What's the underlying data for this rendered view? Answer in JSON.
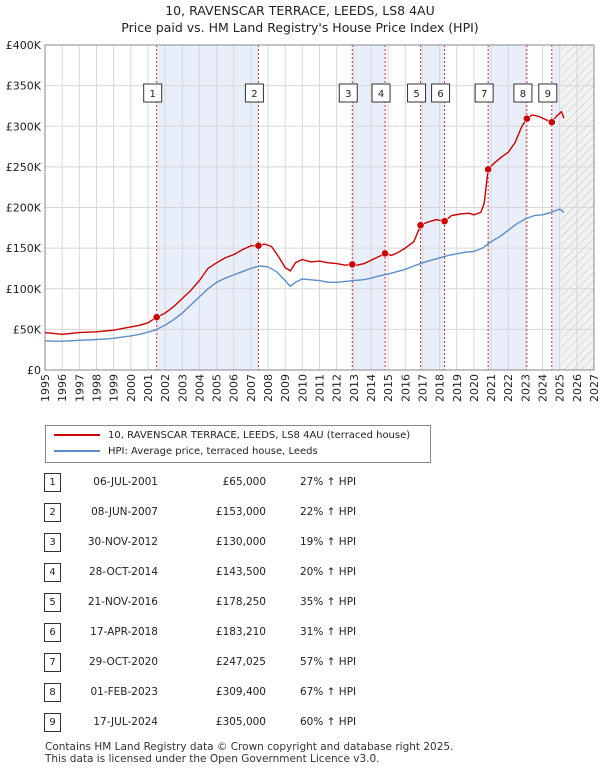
{
  "header": {
    "title_line1": "10, RAVENSCAR TERRACE, LEEDS, LS8 4AU",
    "title_line2": "Price paid vs. HM Land Registry's House Price Index (HPI)"
  },
  "colors": {
    "price_line": "#cc0000",
    "hpi_line": "#5b8ec8",
    "shade": "#e8eefa",
    "grid": "#d8d8d8",
    "marker_border": "#cc0000"
  },
  "chart_data": {
    "type": "line",
    "title": "Price paid vs. HM Land Registry's House Price Index (HPI)",
    "xlabel": "",
    "ylabel": "",
    "xlim": [
      1995,
      2027
    ],
    "ylim": [
      0,
      400000
    ],
    "x_ticks": [
      1995,
      1996,
      1997,
      1998,
      1999,
      2000,
      2001,
      2002,
      2003,
      2004,
      2005,
      2006,
      2007,
      2008,
      2009,
      2010,
      2011,
      2012,
      2013,
      2014,
      2015,
      2016,
      2017,
      2018,
      2019,
      2020,
      2021,
      2022,
      2023,
      2024,
      2025,
      2026,
      2027
    ],
    "y_ticks": [
      {
        "value": 0,
        "label": "£0"
      },
      {
        "value": 50000,
        "label": "£50K"
      },
      {
        "value": 100000,
        "label": "£100K"
      },
      {
        "value": 150000,
        "label": "£150K"
      },
      {
        "value": 200000,
        "label": "£200K"
      },
      {
        "value": 250000,
        "label": "£250K"
      },
      {
        "value": 300000,
        "label": "£300K"
      },
      {
        "value": 350000,
        "label": "£350K"
      },
      {
        "value": 400000,
        "label": "£400K"
      }
    ],
    "forecast_start": 2025.1,
    "shaded_ranges": [
      [
        2001.5,
        2007.45
      ],
      [
        2012.9,
        2014.8
      ],
      [
        2016.9,
        2018.3
      ],
      [
        2020.8,
        2023.1
      ],
      [
        2024.55,
        2025.1
      ]
    ],
    "series": [
      {
        "name": "10, RAVENSCAR TERRACE, LEEDS, LS8 4AU (terraced house)",
        "color": "#cc0000",
        "points": [
          [
            1995.0,
            46000
          ],
          [
            1995.5,
            45000
          ],
          [
            1996.0,
            44000
          ],
          [
            1996.5,
            45000
          ],
          [
            1997.0,
            46000
          ],
          [
            1997.5,
            46500
          ],
          [
            1998.0,
            47000
          ],
          [
            1998.5,
            48000
          ],
          [
            1999.0,
            49000
          ],
          [
            1999.5,
            51000
          ],
          [
            2000.0,
            53000
          ],
          [
            2000.5,
            55000
          ],
          [
            2001.0,
            58000
          ],
          [
            2001.51,
            65000
          ],
          [
            2002.0,
            70000
          ],
          [
            2002.5,
            78000
          ],
          [
            2003.0,
            88000
          ],
          [
            2003.5,
            98000
          ],
          [
            2004.0,
            110000
          ],
          [
            2004.5,
            125000
          ],
          [
            2005.0,
            132000
          ],
          [
            2005.5,
            138000
          ],
          [
            2006.0,
            142000
          ],
          [
            2006.5,
            148000
          ],
          [
            2007.0,
            153000
          ],
          [
            2007.44,
            153000
          ],
          [
            2007.8,
            155000
          ],
          [
            2008.2,
            152000
          ],
          [
            2008.6,
            140000
          ],
          [
            2009.0,
            126000
          ],
          [
            2009.3,
            122000
          ],
          [
            2009.6,
            132000
          ],
          [
            2010.0,
            136000
          ],
          [
            2010.5,
            133000
          ],
          [
            2011.0,
            134000
          ],
          [
            2011.5,
            132000
          ],
          [
            2012.0,
            131000
          ],
          [
            2012.5,
            129000
          ],
          [
            2012.91,
            130000
          ],
          [
            2013.2,
            129000
          ],
          [
            2013.6,
            131000
          ],
          [
            2014.0,
            135000
          ],
          [
            2014.5,
            140000
          ],
          [
            2014.82,
            143500
          ],
          [
            2015.2,
            141000
          ],
          [
            2015.6,
            145000
          ],
          [
            2016.0,
            150000
          ],
          [
            2016.5,
            158000
          ],
          [
            2016.89,
            178250
          ],
          [
            2017.3,
            182000
          ],
          [
            2017.8,
            185000
          ],
          [
            2018.29,
            183210
          ],
          [
            2018.7,
            190000
          ],
          [
            2019.2,
            192000
          ],
          [
            2019.7,
            193000
          ],
          [
            2020.0,
            191000
          ],
          [
            2020.4,
            194000
          ],
          [
            2020.6,
            205000
          ],
          [
            2020.83,
            247025
          ],
          [
            2021.2,
            255000
          ],
          [
            2021.6,
            262000
          ],
          [
            2022.0,
            268000
          ],
          [
            2022.4,
            280000
          ],
          [
            2022.8,
            300000
          ],
          [
            2023.09,
            309400
          ],
          [
            2023.4,
            314000
          ],
          [
            2023.8,
            312000
          ],
          [
            2024.2,
            308000
          ],
          [
            2024.54,
            305000
          ],
          [
            2024.8,
            312000
          ],
          [
            2025.1,
            318000
          ],
          [
            2025.25,
            310000
          ]
        ]
      },
      {
        "name": "HPI: Average price, terraced house, Leeds",
        "color": "#5b8ec8",
        "points": [
          [
            1995.0,
            36000
          ],
          [
            1995.5,
            35500
          ],
          [
            1996.0,
            35500
          ],
          [
            1996.5,
            36000
          ],
          [
            1997.0,
            36500
          ],
          [
            1997.5,
            37000
          ],
          [
            1998.0,
            37500
          ],
          [
            1998.5,
            38000
          ],
          [
            1999.0,
            39000
          ],
          [
            1999.5,
            40500
          ],
          [
            2000.0,
            42000
          ],
          [
            2000.5,
            44000
          ],
          [
            2001.0,
            46500
          ],
          [
            2001.5,
            50000
          ],
          [
            2002.0,
            55000
          ],
          [
            2002.5,
            62000
          ],
          [
            2003.0,
            70000
          ],
          [
            2003.5,
            80000
          ],
          [
            2004.0,
            90000
          ],
          [
            2004.5,
            100000
          ],
          [
            2005.0,
            108000
          ],
          [
            2005.5,
            113000
          ],
          [
            2006.0,
            117000
          ],
          [
            2006.5,
            121000
          ],
          [
            2007.0,
            125000
          ],
          [
            2007.5,
            128000
          ],
          [
            2008.0,
            127000
          ],
          [
            2008.5,
            121000
          ],
          [
            2009.0,
            110000
          ],
          [
            2009.3,
            103000
          ],
          [
            2009.6,
            108000
          ],
          [
            2010.0,
            112000
          ],
          [
            2010.5,
            111000
          ],
          [
            2011.0,
            110000
          ],
          [
            2011.5,
            108000
          ],
          [
            2012.0,
            108000
          ],
          [
            2012.5,
            109000
          ],
          [
            2013.0,
            110000
          ],
          [
            2013.5,
            111000
          ],
          [
            2014.0,
            113000
          ],
          [
            2014.5,
            116000
          ],
          [
            2015.0,
            118000
          ],
          [
            2015.5,
            121000
          ],
          [
            2016.0,
            124000
          ],
          [
            2016.5,
            128000
          ],
          [
            2017.0,
            132000
          ],
          [
            2017.5,
            135000
          ],
          [
            2018.0,
            138000
          ],
          [
            2018.5,
            141000
          ],
          [
            2019.0,
            143000
          ],
          [
            2019.5,
            145000
          ],
          [
            2020.0,
            146000
          ],
          [
            2020.5,
            150000
          ],
          [
            2021.0,
            158000
          ],
          [
            2021.5,
            164000
          ],
          [
            2022.0,
            172000
          ],
          [
            2022.5,
            180000
          ],
          [
            2023.0,
            186000
          ],
          [
            2023.5,
            190000
          ],
          [
            2024.0,
            191000
          ],
          [
            2024.5,
            194000
          ],
          [
            2025.0,
            198000
          ],
          [
            2025.25,
            194000
          ]
        ]
      }
    ],
    "sales": [
      {
        "num": "1",
        "x": 2001.51,
        "y": 65000
      },
      {
        "num": "2",
        "x": 2007.44,
        "y": 153000
      },
      {
        "num": "3",
        "x": 2012.91,
        "y": 130000
      },
      {
        "num": "4",
        "x": 2014.82,
        "y": 143500
      },
      {
        "num": "5",
        "x": 2016.89,
        "y": 178250
      },
      {
        "num": "6",
        "x": 2018.29,
        "y": 183210
      },
      {
        "num": "7",
        "x": 2020.83,
        "y": 247025
      },
      {
        "num": "8",
        "x": 2023.09,
        "y": 309400
      },
      {
        "num": "9",
        "x": 2024.54,
        "y": 305000
      }
    ]
  },
  "legend": {
    "price_label": "10, RAVENSCAR TERRACE, LEEDS, LS8 4AU (terraced house)",
    "hpi_label": "HPI: Average price, terraced house, Leeds"
  },
  "transactions": [
    {
      "num": "1",
      "date": "06-JUL-2001",
      "price": "£65,000",
      "hpi": "27% ↑ HPI"
    },
    {
      "num": "2",
      "date": "08-JUN-2007",
      "price": "£153,000",
      "hpi": "22% ↑ HPI"
    },
    {
      "num": "3",
      "date": "30-NOV-2012",
      "price": "£130,000",
      "hpi": "19% ↑ HPI"
    },
    {
      "num": "4",
      "date": "28-OCT-2014",
      "price": "£143,500",
      "hpi": "20% ↑ HPI"
    },
    {
      "num": "5",
      "date": "21-NOV-2016",
      "price": "£178,250",
      "hpi": "35% ↑ HPI"
    },
    {
      "num": "6",
      "date": "17-APR-2018",
      "price": "£183,210",
      "hpi": "31% ↑ HPI"
    },
    {
      "num": "7",
      "date": "29-OCT-2020",
      "price": "£247,025",
      "hpi": "57% ↑ HPI"
    },
    {
      "num": "8",
      "date": "01-FEB-2023",
      "price": "£309,400",
      "hpi": "67% ↑ HPI"
    },
    {
      "num": "9",
      "date": "17-JUL-2024",
      "price": "£305,000",
      "hpi": "60% ↑ HPI"
    }
  ],
  "footer": {
    "line1": "Contains HM Land Registry data © Crown copyright and database right 2025.",
    "line2": "This data is licensed under the Open Government Licence v3.0."
  }
}
